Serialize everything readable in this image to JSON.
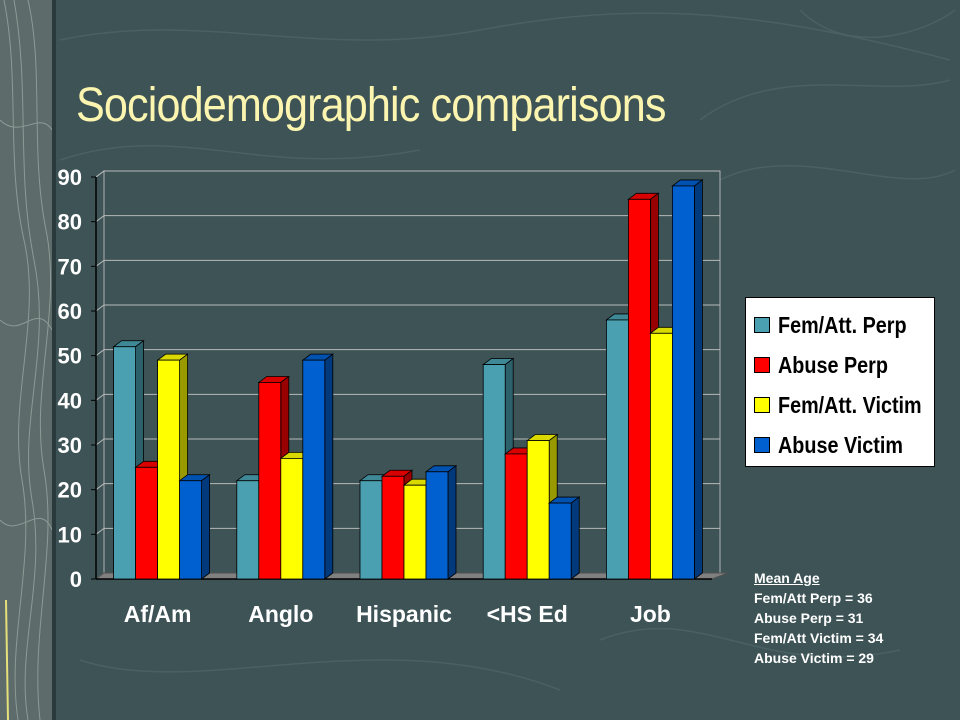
{
  "title": "Sociodemographic comparisons",
  "chart_data": {
    "type": "bar",
    "categories": [
      "Af/Am",
      "Anglo",
      "Hispanic",
      "<HS Ed",
      "Job"
    ],
    "series": [
      {
        "name": "Fem/Att. Perp",
        "color": "#4aa0b0",
        "values": [
          52,
          22,
          22,
          48,
          58
        ]
      },
      {
        "name": "Abuse Perp",
        "color": "#ff0000",
        "values": [
          25,
          44,
          23,
          28,
          85
        ]
      },
      {
        "name": "Fem/Att. Victim",
        "color": "#ffff00",
        "values": [
          49,
          27,
          21,
          31,
          55
        ]
      },
      {
        "name": "Abuse Victim",
        "color": "#0060d0",
        "values": [
          22,
          49,
          24,
          17,
          88
        ]
      }
    ],
    "ylim": [
      0,
      90
    ],
    "yticks": [
      "0",
      "10",
      "20",
      "30",
      "40",
      "50",
      "60",
      "70",
      "80",
      "90"
    ],
    "grid": true,
    "legend": "right"
  },
  "note": {
    "header": "Mean Age",
    "lines": [
      "Fem/Att Perp = 36",
      "Abuse Perp = 31",
      "Fem/Att Victim = 34",
      "Abuse Victim = 29"
    ]
  }
}
